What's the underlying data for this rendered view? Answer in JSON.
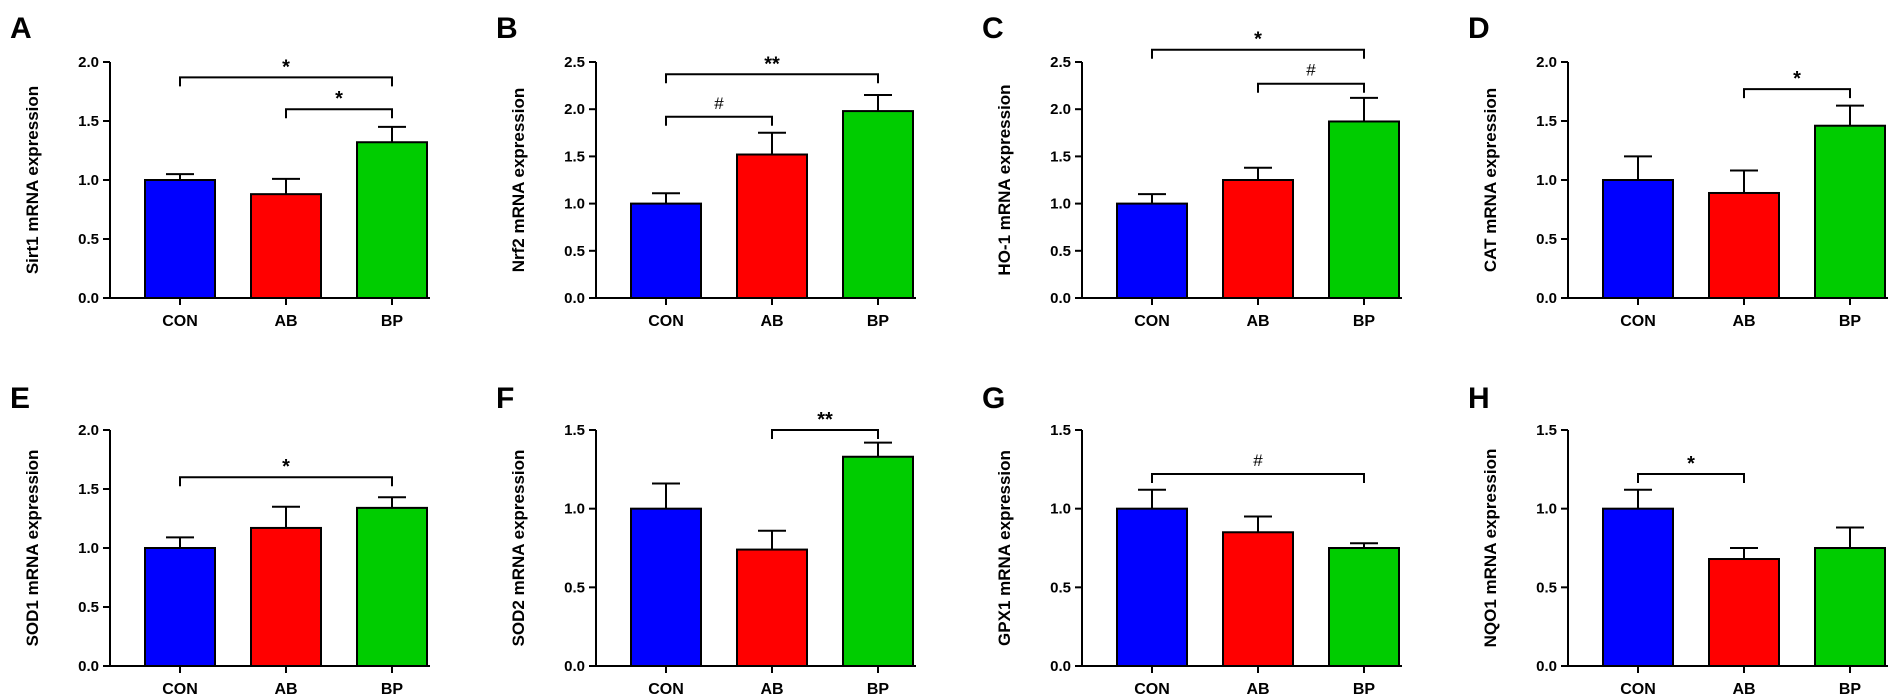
{
  "colors": {
    "CON": "#0000ff",
    "AB": "#ff0000",
    "BP": "#00cc00",
    "axis": "#000000"
  },
  "chart_data": [
    {
      "type": "bar",
      "panel": "A",
      "ylabel": "Sirt1 mRNA expression",
      "categories": [
        "CON",
        "AB",
        "BP"
      ],
      "values": [
        1.0,
        0.88,
        1.32
      ],
      "errors": [
        0.05,
        0.13,
        0.13
      ],
      "ylim": [
        0,
        2.0
      ],
      "yticks": [
        "0.0",
        "0.5",
        "1.0",
        "1.5",
        "2.0"
      ],
      "sig": [
        {
          "from": 0,
          "to": 2,
          "y": 1.87,
          "label": "*"
        },
        {
          "from": 1,
          "to": 2,
          "y": 1.6,
          "label": "*"
        }
      ]
    },
    {
      "type": "bar",
      "panel": "B",
      "ylabel": "Nrf2 mRNA expression",
      "categories": [
        "CON",
        "AB",
        "BP"
      ],
      "values": [
        1.0,
        1.52,
        1.98
      ],
      "errors": [
        0.11,
        0.23,
        0.17
      ],
      "ylim": [
        0,
        2.5
      ],
      "yticks": [
        "0.0",
        "0.5",
        "1.0",
        "1.5",
        "2.0",
        "2.5"
      ],
      "sig": [
        {
          "from": 0,
          "to": 2,
          "y": 2.37,
          "label": "**"
        },
        {
          "from": 0,
          "to": 1,
          "y": 1.92,
          "label": "#"
        }
      ]
    },
    {
      "type": "bar",
      "panel": "C",
      "ylabel": "HO-1 mRNA expression",
      "categories": [
        "CON",
        "AB",
        "BP"
      ],
      "values": [
        1.0,
        1.25,
        1.87
      ],
      "errors": [
        0.1,
        0.13,
        0.25
      ],
      "ylim": [
        0,
        2.5
      ],
      "yticks": [
        "0.0",
        "0.5",
        "1.0",
        "1.5",
        "2.0",
        "2.5"
      ],
      "sig": [
        {
          "from": 0,
          "to": 2,
          "y": 2.63,
          "label": "*"
        },
        {
          "from": 1,
          "to": 2,
          "y": 2.27,
          "label": "#"
        }
      ]
    },
    {
      "type": "bar",
      "panel": "D",
      "ylabel": "CAT mRNA expression",
      "categories": [
        "CON",
        "AB",
        "BP"
      ],
      "values": [
        1.0,
        0.89,
        1.46
      ],
      "errors": [
        0.2,
        0.19,
        0.17
      ],
      "ylim": [
        0,
        2.0
      ],
      "yticks": [
        "0.0",
        "0.5",
        "1.0",
        "1.5",
        "2.0"
      ],
      "sig": [
        {
          "from": 1,
          "to": 2,
          "y": 1.77,
          "label": "*"
        }
      ]
    },
    {
      "type": "bar",
      "panel": "E",
      "ylabel": "SOD1 mRNA expression",
      "categories": [
        "CON",
        "AB",
        "BP"
      ],
      "values": [
        1.0,
        1.17,
        1.34
      ],
      "errors": [
        0.09,
        0.18,
        0.09
      ],
      "ylim": [
        0,
        2.0
      ],
      "yticks": [
        "0.0",
        "0.5",
        "1.0",
        "1.5",
        "2.0"
      ],
      "sig": [
        {
          "from": 0,
          "to": 2,
          "y": 1.6,
          "label": "*"
        }
      ]
    },
    {
      "type": "bar",
      "panel": "F",
      "ylabel": "SOD2 mRNA expression",
      "categories": [
        "CON",
        "AB",
        "BP"
      ],
      "values": [
        1.0,
        0.74,
        1.33
      ],
      "errors": [
        0.16,
        0.12,
        0.09
      ],
      "ylim": [
        0,
        1.5
      ],
      "yticks": [
        "0.0",
        "0.5",
        "1.0",
        "1.5"
      ],
      "sig": [
        {
          "from": 1,
          "to": 2,
          "y": 1.5,
          "label": "**"
        }
      ]
    },
    {
      "type": "bar",
      "panel": "G",
      "ylabel": "GPX1 mRNA expression",
      "categories": [
        "CON",
        "AB",
        "BP"
      ],
      "values": [
        1.0,
        0.85,
        0.75
      ],
      "errors": [
        0.12,
        0.1,
        0.03
      ],
      "ylim": [
        0,
        1.5
      ],
      "yticks": [
        "0.0",
        "0.5",
        "1.0",
        "1.5"
      ],
      "sig": [
        {
          "from": 0,
          "to": 2,
          "y": 1.22,
          "label": "#"
        }
      ]
    },
    {
      "type": "bar",
      "panel": "H",
      "ylabel": "NQO1 mRNA expression",
      "categories": [
        "CON",
        "AB",
        "BP"
      ],
      "values": [
        1.0,
        0.68,
        0.75
      ],
      "errors": [
        0.12,
        0.07,
        0.13
      ],
      "ylim": [
        0,
        1.5
      ],
      "yticks": [
        "0.0",
        "0.5",
        "1.0",
        "1.5"
      ],
      "sig": [
        {
          "from": 0,
          "to": 1,
          "y": 1.22,
          "label": "*"
        }
      ]
    }
  ]
}
